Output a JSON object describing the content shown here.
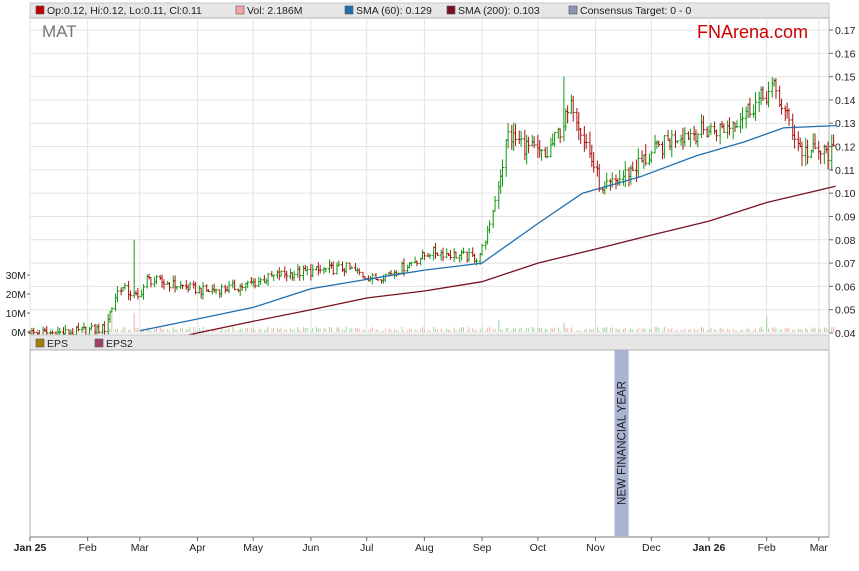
{
  "legend": [
    {
      "label": "Op:0.12, Hi:0.12, Lo:0.11, Cl:0.11",
      "color": "#c00000"
    },
    {
      "label": "Vol: 2.186M",
      "color": "#f4a6a6"
    },
    {
      "label": "SMA (60): 0.129",
      "color": "#1f6fb0"
    },
    {
      "label": "SMA (200): 0.103",
      "color": "#7a1020"
    },
    {
      "label": "Consensus Target: 0 - 0",
      "color": "#8a95b8"
    }
  ],
  "ticker": "MAT",
  "brand": "FNArena.com",
  "eps_legend": [
    {
      "label": "EPS",
      "color": "#a08000"
    },
    {
      "label": "EPS2",
      "color": "#a0406a"
    }
  ],
  "annotation": "NEW FINANCIAL YEAR",
  "chart_data": {
    "type": "candlestick",
    "ticker": "MAT",
    "price_axis": {
      "ticks": [
        "0.04",
        "0.05",
        "0.06",
        "0.07",
        "0.08",
        "0.09",
        "0.10",
        "0.11",
        "0.12",
        "0.13",
        "0.14",
        "0.15",
        "0.16",
        "0.17"
      ],
      "ylim": [
        0.04,
        0.17
      ]
    },
    "volume_axis": {
      "ticks": [
        "0M",
        "10M",
        "20M",
        "30M"
      ],
      "ylim": [
        0,
        30
      ]
    },
    "x_axis": {
      "labels": [
        "Jan 25",
        "Feb",
        "Mar",
        "Apr",
        "May",
        "Jun",
        "Jul",
        "Aug",
        "Sep",
        "Oct",
        "Nov",
        "Dec",
        "Jan 26",
        "Feb",
        "Mar"
      ],
      "bold": [
        "Jan 25",
        "Jan 26"
      ]
    },
    "price_path": [
      [
        "2025-01-01",
        0.04
      ],
      [
        "2025-01-20",
        0.04
      ],
      [
        "2025-02-10",
        0.042
      ],
      [
        "2025-02-18",
        0.06
      ],
      [
        "2025-02-28",
        0.055
      ],
      [
        "2025-03-05",
        0.063
      ],
      [
        "2025-04-05",
        0.058
      ],
      [
        "2025-04-25",
        0.06
      ],
      [
        "2025-05-15",
        0.065
      ],
      [
        "2025-06-20",
        0.068
      ],
      [
        "2025-07-05",
        0.063
      ],
      [
        "2025-07-20",
        0.068
      ],
      [
        "2025-08-05",
        0.075
      ],
      [
        "2025-08-30",
        0.072
      ],
      [
        "2025-09-05",
        0.085
      ],
      [
        "2025-09-15",
        0.125
      ],
      [
        "2025-10-05",
        0.115
      ],
      [
        "2025-10-20",
        0.138
      ],
      [
        "2025-11-05",
        0.1
      ],
      [
        "2025-11-20",
        0.11
      ],
      [
        "2025-12-15",
        0.125
      ],
      [
        "2026-01-10",
        0.128
      ],
      [
        "2026-02-05",
        0.145
      ],
      [
        "2026-02-20",
        0.118
      ],
      [
        "2026-03-10",
        0.117
      ]
    ],
    "spikes": [
      [
        "2025-02-26",
        0.08
      ],
      [
        "2025-10-15",
        0.15
      ],
      [
        "2026-02-03",
        0.16
      ]
    ],
    "sma60": [
      [
        "2025-03-01",
        0.041
      ],
      [
        "2025-04-01",
        0.046
      ],
      [
        "2025-05-01",
        0.051
      ],
      [
        "2025-06-01",
        0.059
      ],
      [
        "2025-07-01",
        0.063
      ],
      [
        "2025-08-01",
        0.067
      ],
      [
        "2025-09-01",
        0.07
      ],
      [
        "2025-10-01",
        0.087
      ],
      [
        "2025-10-25",
        0.1
      ],
      [
        "2025-11-25",
        0.107
      ],
      [
        "2025-12-25",
        0.116
      ],
      [
        "2026-01-20",
        0.122
      ],
      [
        "2026-02-10",
        0.128
      ],
      [
        "2026-03-10",
        0.129
      ]
    ],
    "sma200": [
      [
        "2025-03-10",
        0.036
      ],
      [
        "2025-04-01",
        0.04
      ],
      [
        "2025-05-01",
        0.045
      ],
      [
        "2025-06-01",
        0.05
      ],
      [
        "2025-07-01",
        0.055
      ],
      [
        "2025-08-01",
        0.058
      ],
      [
        "2025-09-01",
        0.062
      ],
      [
        "2025-10-01",
        0.07
      ],
      [
        "2025-11-01",
        0.076
      ],
      [
        "2025-12-01",
        0.082
      ],
      [
        "2026-01-01",
        0.088
      ],
      [
        "2026-02-01",
        0.096
      ],
      [
        "2026-03-10",
        0.103
      ]
    ],
    "volume": {
      "base_millions": 1.5,
      "peaks": [
        [
          "2025-02-14",
          12
        ],
        [
          "2025-02-18",
          14
        ],
        [
          "2025-02-26",
          10
        ],
        [
          "2025-09-10",
          6
        ],
        [
          "2025-10-15",
          5
        ],
        [
          "2026-02-01",
          8
        ],
        [
          "2026-02-10",
          6
        ]
      ]
    },
    "marker": {
      "date": "2025-11-15",
      "label": "NEW FINANCIAL YEAR"
    }
  }
}
